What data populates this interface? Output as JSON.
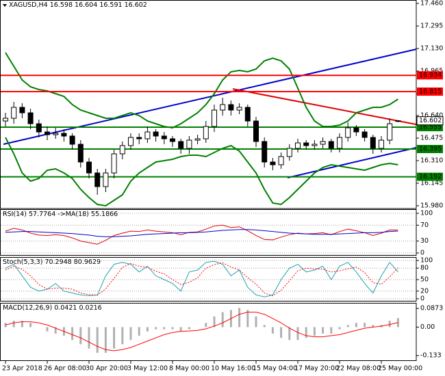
{
  "chart_data": [
    {
      "type": "candlestick",
      "title": "XAGUSD,H4",
      "categories": [
        "23 Apr 2018",
        null,
        null,
        null,
        null,
        "26 Apr 08:00",
        null,
        null,
        null,
        null,
        "30 Apr 20:00",
        null,
        null,
        null,
        null,
        "3 May 12:00",
        null,
        null,
        null,
        null,
        "8 May 00:00",
        null,
        null,
        null,
        null,
        "10 May 16:00",
        null,
        null,
        null,
        null,
        "15 May 04:00",
        null,
        null,
        null,
        null,
        "17 May 20:00",
        null,
        null,
        null,
        null,
        "22 May 08:00",
        null,
        null,
        null,
        null,
        "25 May 00:00",
        null,
        null
      ],
      "open": [
        16.6,
        16.62,
        16.7,
        16.66,
        16.58,
        16.52,
        16.5,
        16.51,
        16.49,
        16.43,
        16.3,
        16.22,
        16.12,
        16.22,
        16.36,
        16.42,
        16.48,
        16.47,
        16.52,
        16.49,
        16.47,
        16.45,
        16.4,
        16.46,
        16.47,
        16.56,
        16.68,
        16.72,
        16.68,
        16.7,
        16.6,
        16.45,
        16.3,
        16.28,
        16.34,
        16.4,
        16.44,
        16.42,
        16.43,
        16.45,
        16.4,
        16.48,
        16.55,
        16.52,
        16.48,
        16.4,
        16.46,
        16.598
      ],
      "high": [
        16.66,
        16.74,
        16.73,
        16.69,
        16.61,
        16.56,
        16.55,
        16.54,
        16.51,
        16.46,
        16.33,
        16.25,
        16.25,
        16.39,
        16.45,
        16.51,
        16.51,
        16.56,
        16.54,
        16.52,
        16.49,
        16.47,
        16.49,
        16.5,
        16.6,
        16.72,
        16.77,
        16.75,
        16.73,
        16.72,
        16.63,
        16.48,
        16.33,
        16.37,
        16.43,
        16.47,
        16.46,
        16.46,
        16.48,
        16.47,
        16.51,
        16.59,
        16.57,
        16.54,
        16.5,
        16.49,
        16.62,
        16.604
      ],
      "low": [
        16.56,
        16.58,
        16.62,
        16.54,
        16.48,
        16.46,
        16.47,
        16.45,
        16.39,
        16.26,
        16.18,
        16.06,
        16.08,
        16.18,
        16.32,
        16.39,
        16.43,
        16.44,
        16.45,
        16.43,
        16.41,
        16.36,
        16.36,
        16.43,
        16.44,
        16.52,
        16.64,
        16.64,
        16.65,
        16.56,
        16.41,
        16.26,
        16.24,
        16.25,
        16.31,
        16.37,
        16.39,
        16.39,
        16.4,
        16.37,
        16.37,
        16.45,
        16.49,
        16.45,
        16.36,
        16.37,
        16.43,
        16.591
      ],
      "close": [
        16.62,
        16.7,
        16.66,
        16.58,
        16.52,
        16.5,
        16.51,
        16.49,
        16.43,
        16.3,
        16.22,
        16.12,
        16.22,
        16.36,
        16.42,
        16.48,
        16.47,
        16.52,
        16.49,
        16.47,
        16.45,
        16.4,
        16.46,
        16.47,
        16.56,
        16.68,
        16.72,
        16.68,
        16.7,
        16.6,
        16.45,
        16.3,
        16.28,
        16.34,
        16.4,
        16.44,
        16.42,
        16.43,
        16.45,
        16.4,
        16.48,
        16.55,
        16.52,
        16.48,
        16.4,
        16.46,
        16.58,
        16.602
      ],
      "color_up": "#ffffff",
      "color_down": "#000000",
      "bands_upper": [
        17.1,
        17.0,
        16.9,
        16.85,
        16.83,
        16.82,
        16.8,
        16.78,
        16.72,
        16.68,
        16.66,
        16.64,
        16.62,
        16.62,
        16.64,
        16.66,
        16.64,
        16.6,
        16.58,
        16.56,
        16.55,
        16.58,
        16.62,
        16.66,
        16.72,
        16.8,
        16.9,
        16.96,
        16.97,
        16.96,
        16.98,
        17.04,
        17.06,
        17.04,
        16.98,
        16.84,
        16.7,
        16.6,
        16.56,
        16.56,
        16.57,
        16.6,
        16.66,
        16.68,
        16.7,
        16.7,
        16.72,
        16.76
      ],
      "bands_lower": [
        16.48,
        16.36,
        16.22,
        16.16,
        16.18,
        16.24,
        16.25,
        16.22,
        16.18,
        16.1,
        16.04,
        15.99,
        15.98,
        16.02,
        16.06,
        16.16,
        16.22,
        16.26,
        16.3,
        16.31,
        16.32,
        16.34,
        16.35,
        16.35,
        16.34,
        16.37,
        16.4,
        16.42,
        16.38,
        16.3,
        16.22,
        16.1,
        16.0,
        15.99,
        16.04,
        16.1,
        16.16,
        16.22,
        16.26,
        16.28,
        16.27,
        16.26,
        16.25,
        16.24,
        16.26,
        16.28,
        16.29,
        16.28
      ],
      "bands_color": "#008000",
      "hlines": [
        {
          "value": 16.934,
          "color": "#ff0000"
        },
        {
          "value": 16.815,
          "color": "#ff0000"
        },
        {
          "value": 16.555,
          "color": "#008000"
        },
        {
          "value": 16.395,
          "color": "#008000"
        },
        {
          "value": 16.192,
          "color": "#008000"
        }
      ],
      "ylim": [
        15.96,
        17.485
      ],
      "yticks": [
        {
          "value": 15.98,
          "label": "15.980"
        },
        16.145,
        {
          "value": 16.31,
          "label": "16.310"
        },
        16.475,
        {
          "value": 16.64,
          "label": "16.640"
        },
        {
          "value": 16.8,
          "label": "16.800"
        },
        16.965,
        {
          "value": 17.13,
          "label": "17.130"
        },
        17.295,
        {
          "value": 17.46,
          "label": "17.460"
        }
      ],
      "grid": false
    },
    {
      "type": "line",
      "ylim": [
        0,
        100
      ],
      "yticks": [
        0,
        30,
        70,
        100
      ],
      "grid": true,
      "series": [
        {
          "name": "RSI(14)",
          "color": "#e00000",
          "values": [
            55,
            62,
            58,
            50,
            45,
            44,
            46,
            44,
            38,
            30,
            26,
            22,
            32,
            44,
            50,
            55,
            54,
            58,
            55,
            53,
            51,
            46,
            52,
            53,
            60,
            68,
            70,
            64,
            66,
            56,
            44,
            34,
            33,
            40,
            46,
            50,
            48,
            49,
            51,
            46,
            54,
            60,
            56,
            51,
            44,
            50,
            58,
            57.7764
          ]
        },
        {
          "name": "->MA(18)",
          "color": "#0000cc",
          "values": [
            52,
            53,
            54,
            54,
            53,
            52,
            51,
            50,
            49,
            47,
            45,
            42,
            41,
            41,
            42,
            43,
            45,
            47,
            48,
            49,
            50,
            51,
            51,
            52,
            53,
            55,
            57,
            58,
            59,
            59,
            58,
            56,
            54,
            52,
            50,
            49,
            48,
            47,
            47,
            47,
            48,
            49,
            50,
            51,
            51,
            52,
            54,
            55.1866
          ]
        }
      ]
    },
    {
      "type": "line",
      "ylim": [
        0,
        100
      ],
      "yticks": [
        0,
        20,
        50,
        80,
        100
      ],
      "grid": true,
      "series": [
        {
          "name": "Stoch(5,3,3)",
          "color": "#20a0b0",
          "values": [
            80,
            90,
            60,
            30,
            20,
            25,
            40,
            20,
            15,
            10,
            8,
            10,
            60,
            90,
            95,
            90,
            70,
            85,
            60,
            50,
            40,
            20,
            70,
            75,
            95,
            98,
            90,
            60,
            75,
            30,
            10,
            5,
            10,
            50,
            80,
            90,
            70,
            75,
            85,
            50,
            85,
            95,
            70,
            40,
            15,
            60,
            95,
            70.2948
          ]
        },
        {
          "color": "#ff0000",
          "style": "dotted",
          "values": [
            75,
            85,
            77,
            60,
            37,
            25,
            28,
            28,
            25,
            15,
            11,
            9,
            26,
            53,
            82,
            92,
            85,
            82,
            72,
            65,
            50,
            37,
            43,
            55,
            80,
            89,
            94,
            83,
            75,
            55,
            38,
            15,
            8,
            22,
            47,
            73,
            80,
            78,
            77,
            70,
            73,
            78,
            83,
            68,
            42,
            38,
            57,
            80.9629
          ]
        }
      ]
    },
    {
      "type": "bar",
      "ylim": [
        -0.158,
        0.107
      ],
      "yticks": [
        -0.133,
        {
          "value": 0,
          "label": "0.00"
        },
        0.0873
      ],
      "grid": false,
      "series": [
        {
          "name": "MACD(12,26,9)",
          "color": "#b0b0b0",
          "style": "histogram",
          "values": [
            0.02,
            0.03,
            0.03,
            0.02,
            0.0,
            -0.02,
            -0.03,
            -0.04,
            -0.06,
            -0.08,
            -0.1,
            -0.12,
            -0.12,
            -0.1,
            -0.08,
            -0.06,
            -0.04,
            -0.02,
            -0.01,
            -0.01,
            -0.01,
            -0.02,
            -0.01,
            0.0,
            0.02,
            0.05,
            0.07,
            0.08,
            0.09,
            0.08,
            0.05,
            0.01,
            -0.03,
            -0.05,
            -0.06,
            -0.06,
            -0.05,
            -0.04,
            -0.03,
            -0.03,
            -0.01,
            0.01,
            0.02,
            0.02,
            0.01,
            0.01,
            0.03,
            0.0421
          ]
        },
        {
          "color": "#ff0000",
          "style": "line",
          "values": [
            0.01,
            0.02,
            0.025,
            0.025,
            0.02,
            0.01,
            -0.005,
            -0.02,
            -0.035,
            -0.05,
            -0.07,
            -0.09,
            -0.105,
            -0.11,
            -0.105,
            -0.095,
            -0.08,
            -0.065,
            -0.05,
            -0.035,
            -0.025,
            -0.02,
            -0.018,
            -0.015,
            -0.008,
            0.005,
            0.02,
            0.04,
            0.06,
            0.07,
            0.07,
            0.06,
            0.04,
            0.02,
            -0.005,
            -0.025,
            -0.04,
            -0.045,
            -0.045,
            -0.04,
            -0.035,
            -0.025,
            -0.015,
            -0.005,
            0.0,
            0.005,
            0.012,
            0.0216
          ]
        }
      ]
    }
  ]
}
